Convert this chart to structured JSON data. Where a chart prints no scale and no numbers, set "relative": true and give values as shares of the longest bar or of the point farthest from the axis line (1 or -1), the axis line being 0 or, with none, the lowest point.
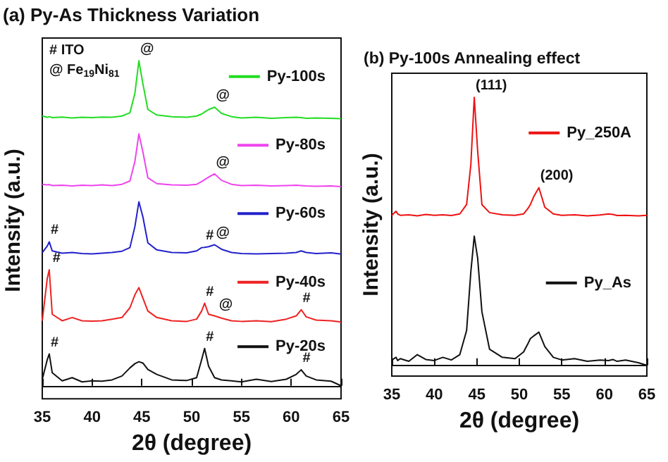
{
  "chart_data": [
    {
      "type": "line",
      "title": "(a) Py-As Thickness Variation",
      "xlabel": "2θ (degree)",
      "ylabel": "Intensity (a.u.)",
      "relative": true,
      "tick_labels": "x",
      "legend": "right",
      "x": [
        35,
        35.5,
        35.7,
        36,
        37,
        38,
        39,
        40,
        41,
        42,
        43,
        43.8,
        44.3,
        44.7,
        45.1,
        45.6,
        46.5,
        48,
        49.5,
        50.5,
        51,
        51.3,
        51.7,
        52.3,
        53,
        54,
        55,
        56.5,
        58,
        59.5,
        60.5,
        61,
        61.5,
        62.5,
        64,
        65
      ],
      "xlim": [
        35,
        65
      ],
      "xticks": [
        35,
        40,
        45,
        50,
        55,
        60,
        65
      ],
      "series": [
        {
          "name": "Py-100s",
          "color": "#22dd22",
          "values": [
            0.83,
            0.826,
            0.828,
            0.825,
            0.827,
            0.824,
            0.826,
            0.825,
            0.827,
            0.826,
            0.83,
            0.84,
            0.9,
            1.0,
            0.93,
            0.85,
            0.833,
            0.828,
            0.826,
            0.83,
            0.836,
            0.842,
            0.85,
            0.857,
            0.838,
            0.828,
            0.824,
            0.826,
            0.823,
            0.825,
            0.826,
            0.825,
            0.823,
            0.824,
            0.823,
            0.822
          ]
        },
        {
          "name": "Py-80s",
          "color": "#ee44ee",
          "values": [
            0.62,
            0.618,
            0.619,
            0.616,
            0.617,
            0.615,
            0.617,
            0.616,
            0.618,
            0.616,
            0.62,
            0.63,
            0.69,
            0.775,
            0.72,
            0.64,
            0.622,
            0.618,
            0.617,
            0.62,
            0.628,
            0.634,
            0.642,
            0.652,
            0.632,
            0.62,
            0.616,
            0.617,
            0.615,
            0.616,
            0.617,
            0.616,
            0.615,
            0.614,
            0.615,
            0.613
          ]
        },
        {
          "name": "Py-60s",
          "color": "#2222cc",
          "values": [
            0.41,
            0.43,
            0.443,
            0.415,
            0.408,
            0.41,
            0.407,
            0.406,
            0.408,
            0.41,
            0.414,
            0.425,
            0.49,
            0.566,
            0.52,
            0.44,
            0.418,
            0.41,
            0.409,
            0.415,
            0.425,
            0.426,
            0.428,
            0.434,
            0.42,
            0.41,
            0.407,
            0.406,
            0.407,
            0.408,
            0.41,
            0.415,
            0.41,
            0.407,
            0.409,
            0.405
          ]
        },
        {
          "name": "Py-40s",
          "color": "#ee2222",
          "values": [
            0.2,
            0.33,
            0.357,
            0.22,
            0.2,
            0.21,
            0.2,
            0.199,
            0.2,
            0.205,
            0.21,
            0.24,
            0.28,
            0.302,
            0.27,
            0.23,
            0.21,
            0.2,
            0.198,
            0.205,
            0.23,
            0.254,
            0.22,
            0.215,
            0.208,
            0.2,
            0.198,
            0.2,
            0.197,
            0.205,
            0.215,
            0.234,
            0.212,
            0.202,
            0.2,
            0.196
          ]
        },
        {
          "name": "Py-20s",
          "color": "#111111",
          "values": [
            0.02,
            0.08,
            0.098,
            0.04,
            0.015,
            0.025,
            0.012,
            0.015,
            0.014,
            0.018,
            0.03,
            0.055,
            0.068,
            0.074,
            0.07,
            0.05,
            0.035,
            0.018,
            0.016,
            0.025,
            0.08,
            0.115,
            0.06,
            0.025,
            0.018,
            0.015,
            0.012,
            0.02,
            0.013,
            0.02,
            0.035,
            0.049,
            0.03,
            0.018,
            0.014,
            0.0
          ]
        }
      ],
      "annotations": [
        "# ITO",
        "@ Fe$_{19}$Ni$_{81}$",
        {
          "text": "@",
          "x": 44.7,
          "y": 1.0
        },
        {
          "text": "@",
          "x": 52.3,
          "y": 0.857
        },
        {
          "text": "@",
          "x": 52.3,
          "y": 0.652
        },
        {
          "text": "#",
          "x": 35.7,
          "y": 0.443
        },
        {
          "text": "#",
          "x": 51.3,
          "y": 0.426
        },
        {
          "text": "@",
          "x": 52.3,
          "y": 0.434
        },
        {
          "text": "#",
          "x": 35.9,
          "y": 0.357
        },
        {
          "text": "#",
          "x": 51.3,
          "y": 0.254
        },
        {
          "text": "@",
          "x": 52.6,
          "y": 0.215
        },
        {
          "text": "#",
          "x": 61,
          "y": 0.234
        },
        {
          "text": "#",
          "x": 35.7,
          "y": 0.098
        },
        {
          "text": "#",
          "x": 51.3,
          "y": 0.115
        },
        {
          "text": "#",
          "x": 61,
          "y": 0.049
        }
      ]
    },
    {
      "type": "line",
      "title": "(b) Py-100s Annealing effect",
      "xlabel": "2θ (degree)",
      "ylabel": "Intensity (a.u.)",
      "relative": true,
      "tick_labels": "x",
      "legend": "right",
      "x": [
        35,
        35.5,
        35.7,
        36,
        37,
        38,
        39,
        40,
        41,
        42,
        43,
        43.8,
        44.3,
        44.7,
        45.1,
        45.6,
        46.5,
        48,
        49.5,
        50.5,
        51,
        51.3,
        51.7,
        52.3,
        53,
        54,
        55,
        56.5,
        58,
        59.5,
        60.5,
        61,
        61.5,
        62.5,
        64,
        65
      ],
      "xlim": [
        35,
        65
      ],
      "xticks": [
        35,
        40,
        45,
        50,
        55,
        60,
        65
      ],
      "series": [
        {
          "name": "Py_250A",
          "color": "#ee1111",
          "values": [
            0.56,
            0.575,
            0.565,
            0.56,
            0.562,
            0.558,
            0.563,
            0.56,
            0.562,
            0.559,
            0.565,
            0.6,
            0.75,
            1.0,
            0.8,
            0.6,
            0.57,
            0.562,
            0.56,
            0.565,
            0.585,
            0.6,
            0.63,
            0.663,
            0.59,
            0.565,
            0.56,
            0.562,
            0.558,
            0.561,
            0.565,
            0.563,
            0.559,
            0.56,
            0.558,
            0.56
          ]
        },
        {
          "name": "Py_As",
          "color": "#111111",
          "values": [
            0.02,
            0.03,
            0.018,
            0.025,
            0.015,
            0.04,
            0.022,
            0.018,
            0.03,
            0.02,
            0.04,
            0.13,
            0.35,
            0.482,
            0.4,
            0.2,
            0.06,
            0.03,
            0.025,
            0.05,
            0.08,
            0.1,
            0.11,
            0.124,
            0.07,
            0.03,
            0.02,
            0.025,
            0.015,
            0.02,
            0.018,
            0.022,
            0.015,
            0.02,
            0.01,
            0.0
          ]
        }
      ],
      "annotations": [
        {
          "text": "(111)",
          "x": 44.7,
          "y": 1.0
        },
        {
          "text": "(200)",
          "x": 52.3,
          "y": 0.663
        }
      ]
    }
  ]
}
